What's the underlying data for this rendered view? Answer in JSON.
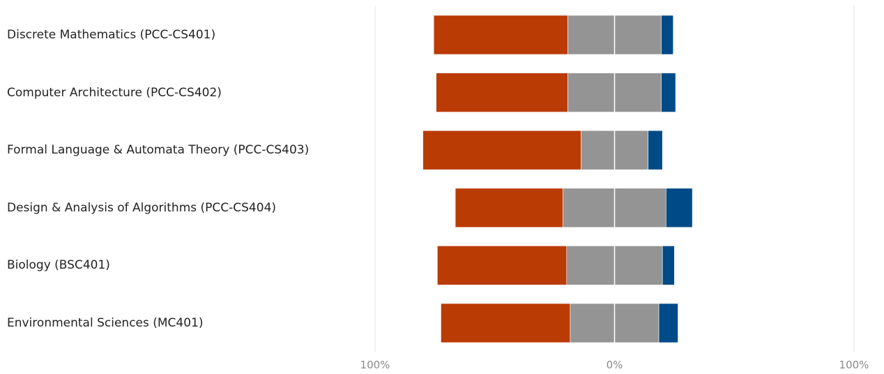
{
  "colors": {
    "negative": "#bb3b05",
    "neutral": "#949494",
    "positive": "#004b87",
    "grid": "#e6e6e6",
    "center_line": "#ffffff"
  },
  "chart_data": {
    "type": "bar",
    "orientation": "horizontal",
    "stacking": "diverging",
    "categories": [
      "Discrete Mathematics (PCC-CS401)",
      "Computer Architecture (PCC-CS402)",
      "Formal Language & Automata Theory (PCC-CS403)",
      "Design & Analysis of Algorithms (PCC-CS404)",
      "Biology (BSC401)",
      "Environmental Sciences (MC401)"
    ],
    "series": [
      {
        "color": "#bb3b05",
        "values": [
          56,
          55,
          66,
          45,
          54,
          54
        ]
      },
      {
        "color": "#949494",
        "values": [
          39,
          39,
          28,
          43,
          40,
          37
        ]
      },
      {
        "color": "#004b87",
        "values": [
          5,
          6,
          6,
          11,
          5,
          8
        ]
      }
    ],
    "neutral_split": "half",
    "xlim": [
      -100,
      100
    ],
    "x_ticks": [
      "100%",
      "0%",
      "100%"
    ],
    "grid": true,
    "legend": "none"
  }
}
